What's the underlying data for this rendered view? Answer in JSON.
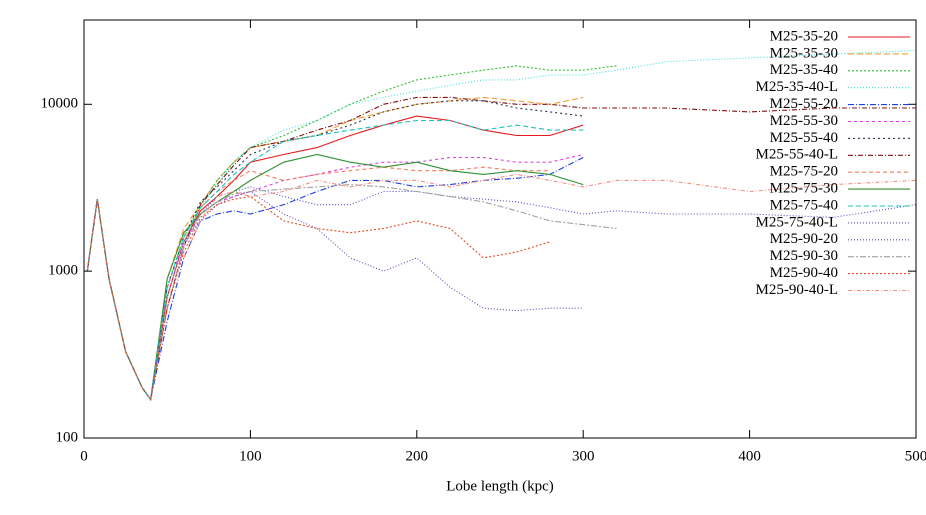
{
  "chart_data": {
    "type": "line",
    "xlabel": "Lobe length (kpc)",
    "x": [
      2,
      8,
      15,
      25,
      35,
      40,
      50,
      60,
      70,
      80,
      90,
      100,
      120,
      140,
      160,
      180,
      200,
      220,
      240,
      260,
      280,
      300,
      320,
      350,
      400,
      450,
      500
    ],
    "xlim": [
      0,
      500
    ],
    "xticks": [
      0,
      100,
      200,
      300,
      400,
      500
    ],
    "ylim": [
      100,
      32000
    ],
    "yticks": [
      100,
      1000,
      10000
    ],
    "ylog": true,
    "legend": "top-right",
    "series": [
      {
        "name": "M25-35-20",
        "color": "#e41a1c",
        "dash": "",
        "values": [
          1000,
          2700,
          900,
          330,
          200,
          170,
          700,
          1500,
          2300,
          2800,
          3500,
          4500,
          5000,
          5500,
          6500,
          7500,
          8500,
          8000,
          7000,
          6500,
          6500,
          7500,
          null,
          null,
          null,
          null,
          null
        ]
      },
      {
        "name": "M25-35-30",
        "color": "#f0a030",
        "dash": "6 3",
        "values": [
          1000,
          2700,
          900,
          330,
          200,
          170,
          900,
          1800,
          2500,
          3500,
          4500,
          5500,
          6000,
          6500,
          8000,
          9000,
          10000,
          10500,
          11000,
          10500,
          10000,
          11000,
          null,
          null,
          null,
          null,
          null
        ]
      },
      {
        "name": "M25-35-40",
        "color": "#30c030",
        "dash": "2 2",
        "values": [
          1000,
          2700,
          900,
          330,
          200,
          170,
          800,
          1600,
          2500,
          3500,
          4500,
          5500,
          6500,
          8000,
          10000,
          12000,
          14000,
          15000,
          16000,
          17000,
          16000,
          16000,
          17000,
          null,
          null,
          null,
          null
        ]
      },
      {
        "name": "M25-35-40-L",
        "color": "#40e0e0",
        "dash": "1 2",
        "values": [
          1000,
          2700,
          900,
          330,
          200,
          170,
          700,
          1500,
          2400,
          3300,
          4500,
          5500,
          7000,
          8000,
          10000,
          11000,
          12000,
          13000,
          14000,
          14000,
          15000,
          15000,
          16000,
          18000,
          19000,
          20000,
          21000
        ]
      },
      {
        "name": "M25-55-20",
        "color": "#2040e0",
        "dash": "6 2 1 2",
        "values": [
          1000,
          2700,
          900,
          330,
          200,
          170,
          500,
          1200,
          2000,
          2200,
          2300,
          2200,
          2500,
          3000,
          3500,
          3500,
          3200,
          3300,
          3500,
          3600,
          3800,
          4800,
          null,
          null,
          null,
          null,
          null
        ]
      },
      {
        "name": "M25-55-30",
        "color": "#e040e0",
        "dash": "3 3",
        "values": [
          1000,
          2700,
          900,
          330,
          200,
          170,
          800,
          1500,
          2200,
          2600,
          2800,
          3000,
          3500,
          3800,
          4200,
          4500,
          4500,
          4800,
          4800,
          4500,
          4500,
          5000,
          null,
          null,
          null,
          null,
          null
        ]
      },
      {
        "name": "M25-55-40",
        "color": "#303050",
        "dash": "2 3",
        "values": [
          1000,
          2700,
          900,
          330,
          200,
          170,
          800,
          1600,
          2600,
          3200,
          4000,
          5000,
          6000,
          6500,
          7500,
          9000,
          10000,
          10500,
          10500,
          9500,
          9000,
          8500,
          null,
          null,
          null,
          null,
          null
        ]
      },
      {
        "name": "M25-55-40-L",
        "color": "#801010",
        "dash": "5 2 1 2",
        "values": [
          1000,
          2700,
          900,
          330,
          200,
          170,
          600,
          1400,
          2500,
          3300,
          4300,
          5500,
          6000,
          7000,
          8000,
          10000,
          11000,
          11000,
          10500,
          10000,
          10000,
          9500,
          9500,
          9500,
          9000,
          9500,
          9500
        ]
      },
      {
        "name": "M25-75-20",
        "color": "#f08060",
        "dash": "4 3",
        "values": [
          1000,
          2700,
          900,
          330,
          200,
          170,
          700,
          1500,
          2400,
          3000,
          3500,
          4000,
          3500,
          3800,
          4000,
          4200,
          4000,
          4000,
          4200,
          4000,
          4000,
          null,
          null,
          null,
          null,
          null,
          null
        ]
      },
      {
        "name": "M25-75-30",
        "color": "#309030",
        "dash": "",
        "values": [
          1000,
          2700,
          900,
          330,
          200,
          170,
          900,
          1700,
          2200,
          2600,
          3000,
          3500,
          4500,
          5000,
          4500,
          4200,
          4500,
          4000,
          3800,
          4000,
          3800,
          3300,
          null,
          null,
          null,
          null,
          null
        ]
      },
      {
        "name": "M25-75-40",
        "color": "#20c0c0",
        "dash": "5 3",
        "values": [
          1000,
          2700,
          900,
          330,
          200,
          170,
          800,
          1600,
          2400,
          3000,
          3800,
          4500,
          6000,
          6500,
          7000,
          7500,
          8000,
          8000,
          7000,
          7500,
          7000,
          7000,
          null,
          null,
          null,
          null,
          null
        ]
      },
      {
        "name": "M25-75-40-L",
        "color": "#5050c0",
        "dash": "1 2",
        "values": [
          1000,
          2700,
          900,
          330,
          200,
          170,
          600,
          1400,
          2200,
          2800,
          3000,
          3200,
          2800,
          2500,
          2500,
          3000,
          3000,
          2800,
          2700,
          2600,
          2400,
          2200,
          2300,
          2200,
          2200,
          2100,
          2500
        ]
      },
      {
        "name": "M25-90-20",
        "color": "#7040b0",
        "dash": "1 2",
        "values": [
          1000,
          2700,
          900,
          330,
          200,
          170,
          700,
          1500,
          2000,
          2500,
          2800,
          3000,
          2200,
          1800,
          1200,
          1000,
          1200,
          800,
          600,
          580,
          600,
          600,
          null,
          null,
          null,
          null,
          null
        ]
      },
      {
        "name": "M25-90-30",
        "color": "#a0a0a0",
        "dash": "6 2 2 2",
        "values": [
          1000,
          2700,
          900,
          330,
          200,
          170,
          600,
          1400,
          2200,
          2600,
          2900,
          3000,
          3100,
          3200,
          3300,
          3200,
          3000,
          2800,
          2600,
          2300,
          2000,
          1900,
          1800,
          null,
          null,
          null,
          null
        ]
      },
      {
        "name": "M25-90-40",
        "color": "#e05020",
        "dash": "2 2",
        "values": [
          1000,
          2700,
          900,
          330,
          200,
          170,
          600,
          1300,
          2100,
          2500,
          2700,
          2800,
          2000,
          1800,
          1700,
          1800,
          2000,
          1800,
          1200,
          1300,
          1500,
          null,
          null,
          null,
          null,
          null,
          null
        ]
      },
      {
        "name": "M25-90-40-L",
        "color": "#f09080",
        "dash": "4 2 1 2",
        "values": [
          null,
          null,
          null,
          null,
          null,
          null,
          null,
          1200,
          2000,
          2800,
          3000,
          2800,
          3000,
          3500,
          3200,
          3500,
          3500,
          3200,
          3500,
          3800,
          3500,
          3200,
          3500,
          3500,
          3000,
          3300,
          3500
        ]
      }
    ]
  }
}
